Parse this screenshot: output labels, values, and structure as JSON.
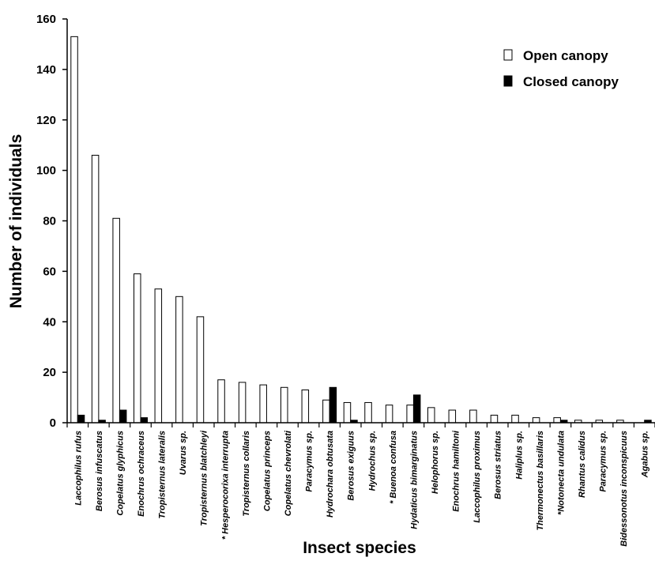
{
  "chart_data": {
    "type": "bar",
    "title": "",
    "xlabel": "Insect species",
    "ylabel": "Number of individuals",
    "ylim": [
      0,
      160
    ],
    "yticks": [
      0,
      20,
      40,
      60,
      80,
      100,
      120,
      140,
      160
    ],
    "grid": false,
    "legend_position": "top-right",
    "categories": [
      "Laccophilus rufus",
      "Berosus infuscatus",
      "Copelatus glyphicus",
      "Enochrus ochraceus",
      "Tropisternus lateralis",
      "Uvarus sp.",
      "Tropisternus blatchleyi",
      "* Hesperocorixa interrupta",
      "Tropisternus collaris",
      "Copelatus princeps",
      "Copelatus chevrolati",
      "Paracymus sp.",
      "Hydrochara obtusata",
      "Berosus exiguus",
      "Hydrochus sp.",
      "* Buenoa confusa",
      "Hydaticus bimarginatus",
      "Helophorus sp.",
      "Enochrus hamiltoni",
      "Laccophilus proximus",
      "Berosus striatus",
      "Haliplus sp.",
      "Thermonectus basillaris",
      "*Notonecta undulata",
      "Rhantus calidus",
      "Paracymus sp.",
      "Bidessonotus inconspicuus",
      "Agabus sp."
    ],
    "series": [
      {
        "name": "Open canopy",
        "color": "#ffffff",
        "values": [
          153,
          106,
          81,
          59,
          53,
          50,
          42,
          17,
          16,
          15,
          14,
          13,
          9,
          8,
          8,
          7,
          7,
          6,
          5,
          5,
          3,
          3,
          2,
          2,
          1,
          1,
          1,
          0
        ]
      },
      {
        "name": "Closed canopy",
        "color": "#000000",
        "values": [
          3,
          1,
          5,
          2,
          0,
          0,
          0,
          0,
          0,
          0,
          0,
          0,
          14,
          1,
          0,
          0,
          11,
          0,
          0,
          0,
          0,
          0,
          0,
          1,
          0,
          0,
          0,
          1
        ]
      }
    ]
  }
}
